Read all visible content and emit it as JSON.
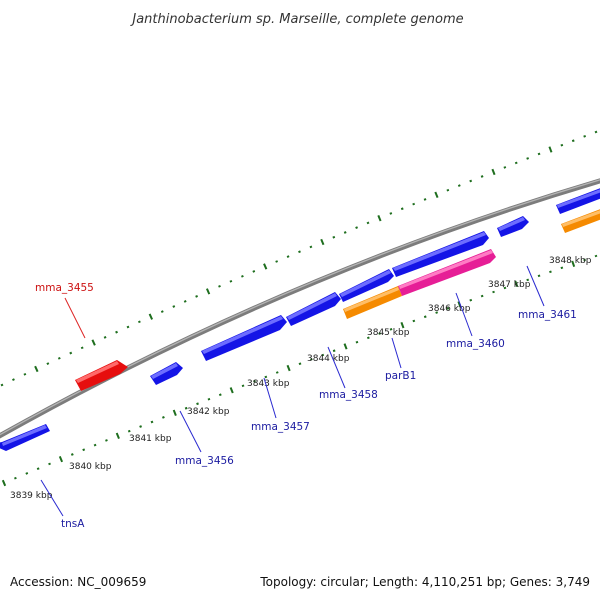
{
  "title": "Janthinobacterium sp. Marseille, complete genome",
  "accession": "Accession: NC_009659",
  "summary": "Topology: circular; Length: 4,110,251 bp; Genes: 3,749",
  "colors": {
    "background": "#ffffff",
    "backbone": "#8a8a8a",
    "backbone_highlight": "#b4b4b4",
    "tick": "#1e6e1e",
    "gene_blue": "#1414e6",
    "gene_red": "#e60e0e",
    "gene_orange": "#f58a00",
    "gene_pink": "#e61e96",
    "label_blue": "#1a1aa0",
    "label_red": "#cc1111",
    "leader": "#2a2ad0",
    "leader_red": "#dd2222"
  },
  "ruler_labels": [
    "3839 kbp",
    "3840 kbp",
    "3841 kbp",
    "3842 kbp",
    "3843 kbp",
    "3844 kbp",
    "3845 kbp",
    "3846 kbp",
    "3847 kbp",
    "3848 kbp"
  ],
  "genes": [
    {
      "name": "tnsA",
      "color": "blue",
      "strand": "reverse",
      "labeled": true
    },
    {
      "name": "mma_3455",
      "color": "red",
      "strand": "forward",
      "labeled": true
    },
    {
      "name": "mma_3456",
      "color": "blue",
      "strand": "forward",
      "labeled": true
    },
    {
      "name": "mma_3457",
      "color": "blue",
      "strand": "forward",
      "labeled": true
    },
    {
      "name": "mma_3458",
      "color": "blue",
      "strand": "forward",
      "labeled": true
    },
    {
      "name": "",
      "color": "blue",
      "strand": "forward",
      "labeled": false
    },
    {
      "name": "",
      "color": "orange",
      "strand": "forward",
      "labeled": false
    },
    {
      "name": "parB1",
      "color": "pink",
      "strand": "forward",
      "labeled": true
    },
    {
      "name": "mma_3460",
      "color": "blue",
      "strand": "forward",
      "labeled": true
    },
    {
      "name": "",
      "color": "blue",
      "strand": "forward",
      "labeled": false
    },
    {
      "name": "mma_3461",
      "color": "blue",
      "strand": "forward",
      "labeled": true
    },
    {
      "name": "",
      "color": "orange",
      "strand": "forward",
      "labeled": false
    }
  ]
}
